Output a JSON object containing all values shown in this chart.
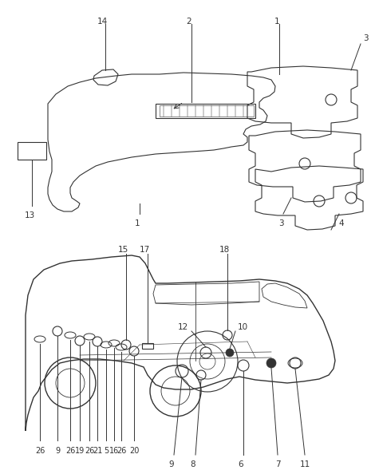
{
  "bg_color": "#ffffff",
  "line_color": "#333333",
  "fig_width": 4.7,
  "fig_height": 5.89,
  "dpi": 100
}
